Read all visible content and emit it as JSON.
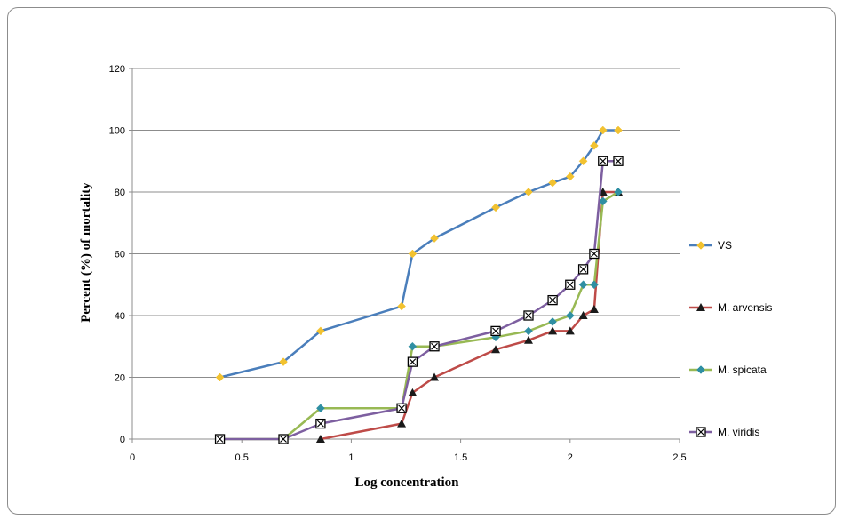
{
  "chart_data": {
    "type": "line",
    "xlabel": "Log concentration",
    "ylabel": "Percent (%) of mortality",
    "xlim": [
      0,
      2.5
    ],
    "ylim": [
      0,
      120
    ],
    "x_ticks": [
      0,
      0.5,
      1,
      1.5,
      2,
      2.5
    ],
    "x_tick_labels": [
      "0",
      "0.5",
      "1",
      "1.5",
      "2",
      "2.5"
    ],
    "y_ticks": [
      0,
      20,
      40,
      60,
      80,
      100,
      120
    ],
    "y_tick_labels": [
      "0",
      "20",
      "40",
      "60",
      "80",
      "100",
      "120"
    ],
    "grid": "horizontal",
    "legend_position": "right",
    "series": [
      {
        "name": "VS",
        "color": "#4a7ebb",
        "marker": "diamond",
        "marker_color": "#f2c230",
        "x": [
          0.4,
          0.69,
          0.86,
          1.23,
          1.28,
          1.38,
          1.66,
          1.81,
          1.92,
          2.0,
          2.06,
          2.11,
          2.15,
          2.22
        ],
        "y": [
          20,
          25,
          35,
          43,
          60,
          65,
          75,
          80,
          83,
          85,
          90,
          95,
          100,
          100
        ]
      },
      {
        "name": "M. arvensis",
        "color": "#be4b48",
        "marker": "triangle",
        "marker_color": "#1a1a1a",
        "x": [
          0.86,
          1.23,
          1.28,
          1.38,
          1.66,
          1.81,
          1.92,
          2.0,
          2.06,
          2.11,
          2.15,
          2.22
        ],
        "y": [
          0,
          5,
          15,
          20,
          29,
          32,
          35,
          35,
          40,
          42,
          80,
          80
        ]
      },
      {
        "name": "M. spicata",
        "color": "#98b954",
        "marker": "diamond",
        "marker_color": "#2f8fa3",
        "x": [
          0.4,
          0.69,
          0.86,
          1.23,
          1.28,
          1.38,
          1.66,
          1.81,
          1.92,
          2.0,
          2.06,
          2.11,
          2.15,
          2.22
        ],
        "y": [
          0,
          0,
          10,
          10,
          30,
          30,
          33,
          35,
          38,
          40,
          50,
          50,
          77,
          80
        ]
      },
      {
        "name": "M. viridis",
        "color": "#7d5fa0",
        "marker": "square-x",
        "marker_color": "#000000",
        "x": [
          0.4,
          0.69,
          0.86,
          1.23,
          1.28,
          1.38,
          1.66,
          1.81,
          1.92,
          2.0,
          2.06,
          2.11,
          2.15,
          2.22
        ],
        "y": [
          0,
          0,
          5,
          10,
          25,
          30,
          35,
          40,
          45,
          50,
          55,
          60,
          90,
          90
        ]
      }
    ]
  }
}
